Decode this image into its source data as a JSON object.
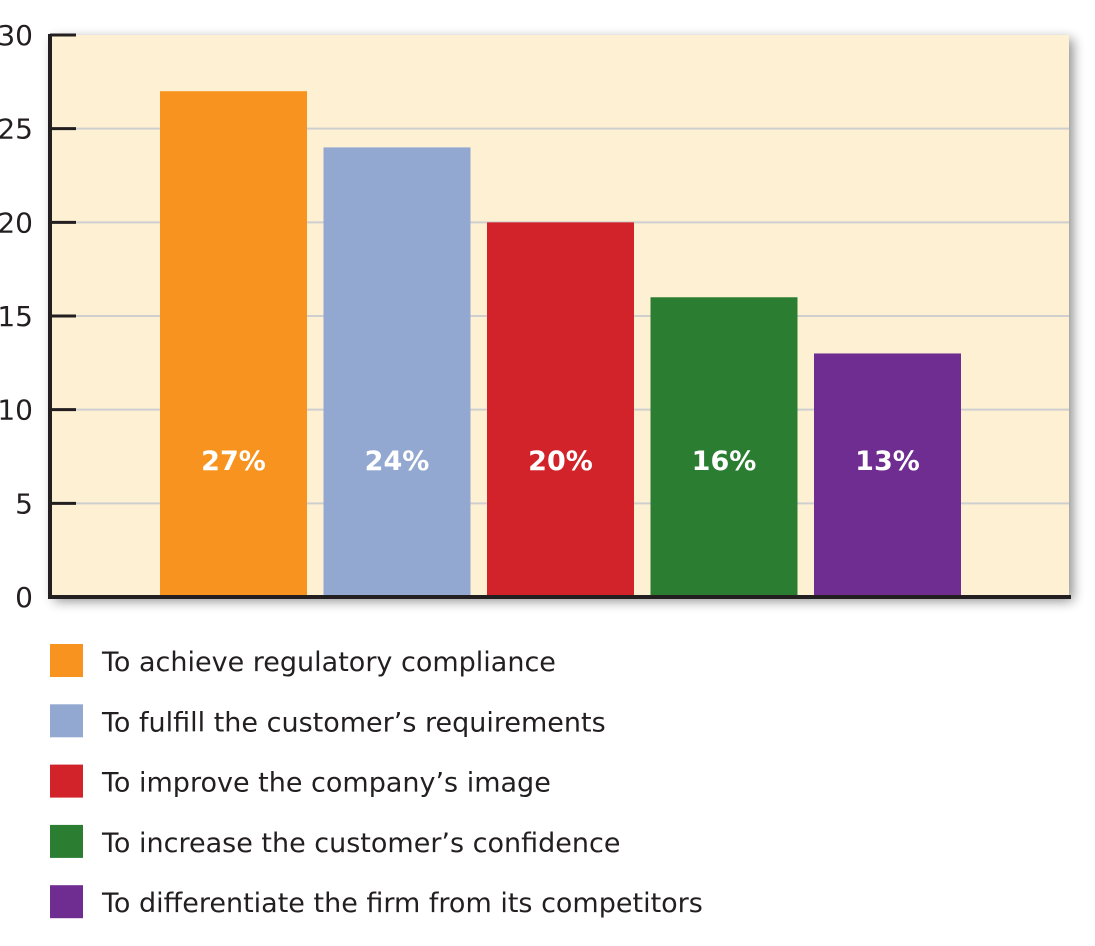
{
  "chart_data": {
    "type": "bar",
    "title": "",
    "xlabel": "",
    "ylabel": "",
    "ylim": [
      0,
      30
    ],
    "yticks": [
      0,
      5,
      10,
      15,
      20,
      25,
      30
    ],
    "grid": true,
    "legend_placement": "bottom",
    "background_color": "#FEF0D3",
    "categories": [
      "To achieve regulatory compliance",
      "To fulfill the customer’s requirements",
      "To improve the company’s image",
      "To increase the customer’s confidence",
      "To differentiate the firm from its competitors"
    ],
    "values": [
      27,
      24,
      20,
      16,
      13
    ],
    "data_labels": [
      "27%",
      "24%",
      "20%",
      "16%",
      "13%"
    ],
    "colors": [
      "#F7931E",
      "#92A8D1",
      "#D2232A",
      "#2A7D31",
      "#6F2C91"
    ]
  }
}
